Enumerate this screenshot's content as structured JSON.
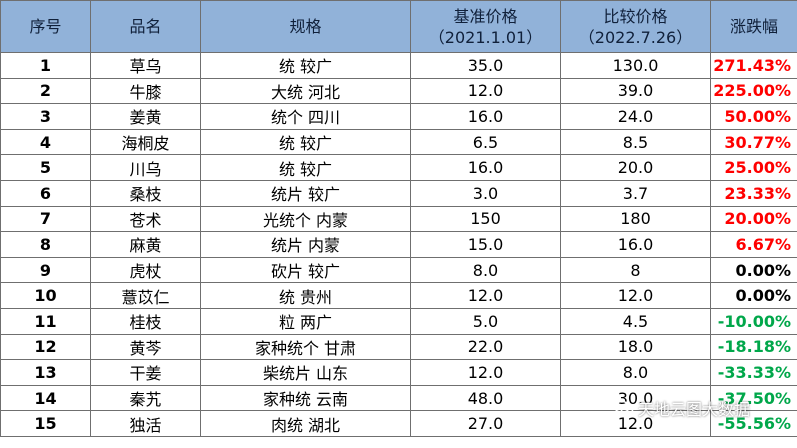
{
  "table": {
    "headers": [
      "序号",
      "品名",
      "规格",
      "基准价格",
      "（2021.1.01）",
      "比较价格",
      "（2022.7.26）",
      "涨跌幅"
    ],
    "rows": [
      {
        "idx": "1",
        "name": "草乌",
        "spec": "统 较广",
        "base": "35.0",
        "cmp": "130.0",
        "chg": "271.43%",
        "dir": "up"
      },
      {
        "idx": "2",
        "name": "牛膝",
        "spec": "大统 河北",
        "base": "12.0",
        "cmp": "39.0",
        "chg": "225.00%",
        "dir": "up"
      },
      {
        "idx": "3",
        "name": "姜黄",
        "spec": "统个 四川",
        "base": "16.0",
        "cmp": "24.0",
        "chg": "50.00%",
        "dir": "up"
      },
      {
        "idx": "4",
        "name": "海桐皮",
        "spec": "统 较广",
        "base": "6.5",
        "cmp": "8.5",
        "chg": "30.77%",
        "dir": "up"
      },
      {
        "idx": "5",
        "name": "川乌",
        "spec": "统 较广",
        "base": "16.0",
        "cmp": "20.0",
        "chg": "25.00%",
        "dir": "up"
      },
      {
        "idx": "6",
        "name": "桑枝",
        "spec": "统片 较广",
        "base": "3.0",
        "cmp": "3.7",
        "chg": "23.33%",
        "dir": "up"
      },
      {
        "idx": "7",
        "name": "苍术",
        "spec": "光统个 内蒙",
        "base": "150",
        "cmp": "180",
        "chg": "20.00%",
        "dir": "up"
      },
      {
        "idx": "8",
        "name": "麻黄",
        "spec": "统片 内蒙",
        "base": "15.0",
        "cmp": "16.0",
        "chg": "6.67%",
        "dir": "up"
      },
      {
        "idx": "9",
        "name": "虎杖",
        "spec": "砍片 较广",
        "base": "8.0",
        "cmp": "8",
        "chg": "0.00%",
        "dir": "flat"
      },
      {
        "idx": "10",
        "name": "薏苡仁",
        "spec": "统 贵州",
        "base": "12.0",
        "cmp": "12.0",
        "chg": "0.00%",
        "dir": "flat"
      },
      {
        "idx": "11",
        "name": "桂枝",
        "spec": "粒 两广",
        "base": "5.0",
        "cmp": "4.5",
        "chg": "-10.00%",
        "dir": "down"
      },
      {
        "idx": "12",
        "name": "黄芩",
        "spec": "家种统个 甘肃",
        "base": "22.0",
        "cmp": "18.0",
        "chg": "-18.18%",
        "dir": "down"
      },
      {
        "idx": "13",
        "name": "干姜",
        "spec": "柴统片 山东",
        "base": "12.0",
        "cmp": "8.0",
        "chg": "-33.33%",
        "dir": "down"
      },
      {
        "idx": "14",
        "name": "秦艽",
        "spec": "家种统 云南",
        "base": "48.0",
        "cmp": "30.0",
        "chg": "-37.50%",
        "dir": "down"
      },
      {
        "idx": "15",
        "name": "独活",
        "spec": "肉统 湖北",
        "base": "27.0",
        "cmp": "12.0",
        "chg": "-55.56%",
        "dir": "down"
      }
    ]
  },
  "watermark": {
    "text": "天地云图大数据",
    "icon": "wechat-icon"
  },
  "colors": {
    "header_bg": "#91b2d9",
    "up": "#ff0000",
    "down": "#00a74a",
    "flat": "#000000"
  }
}
